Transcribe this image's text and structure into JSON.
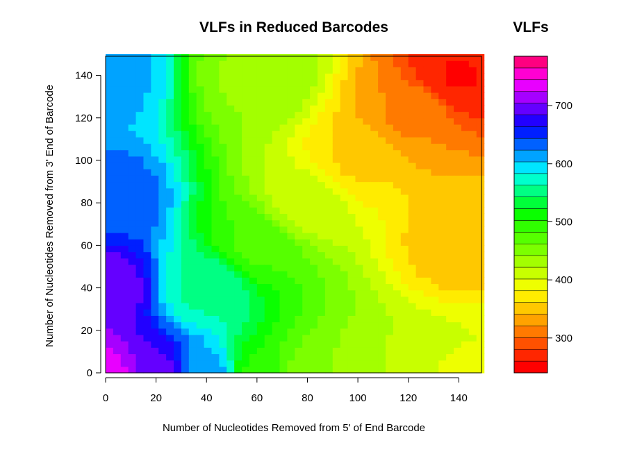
{
  "chart_data": {
    "type": "heatmap",
    "title": "VLFs in Reduced Barcodes",
    "xlabel": "Number of Nucleotides Removed from 5' of End Barcode",
    "ylabel": "Number of Nucleotides Removed from 3' End of Barcode",
    "x_ticks": [
      "0",
      "20",
      "40",
      "60",
      "80",
      "100",
      "120",
      "140"
    ],
    "y_ticks": [
      "0",
      "20",
      "40",
      "60",
      "80",
      "100",
      "120",
      "140"
    ],
    "xlim": [
      0,
      149
    ],
    "ylim": [
      0,
      149
    ],
    "grid": false,
    "colorbar": {
      "title": "VLFs",
      "ticks": [
        "300",
        "400",
        "500",
        "600",
        "700"
      ],
      "range": [
        240,
        785
      ],
      "levels": 27,
      "colors": [
        "#FF0000",
        "#FF2600",
        "#FF5100",
        "#FF7A00",
        "#FFA200",
        "#FFC800",
        "#FFEC00",
        "#EEFF00",
        "#C8FF00",
        "#A3FF00",
        "#7CFF00",
        "#56FF00",
        "#30FF00",
        "#0AFF00",
        "#00FF3A",
        "#00FF83",
        "#00FFCC",
        "#00E5FF",
        "#00A3FF",
        "#0061FF",
        "#001FFF",
        "#2200FF",
        "#6400FF",
        "#A600FF",
        "#E800FF",
        "#FF00D2",
        "#FF0080"
      ]
    },
    "surface_samples": [
      {
        "x": 0,
        "y": 0,
        "vlf": 730
      },
      {
        "x": 0,
        "y": 40,
        "vlf": 700
      },
      {
        "x": 0,
        "y": 80,
        "vlf": 640
      },
      {
        "x": 0,
        "y": 140,
        "vlf": 610
      },
      {
        "x": 20,
        "y": 0,
        "vlf": 690
      },
      {
        "x": 40,
        "y": 0,
        "vlf": 610
      },
      {
        "x": 60,
        "y": 0,
        "vlf": 500
      },
      {
        "x": 80,
        "y": 0,
        "vlf": 455
      },
      {
        "x": 100,
        "y": 0,
        "vlf": 430
      },
      {
        "x": 120,
        "y": 0,
        "vlf": 415
      },
      {
        "x": 140,
        "y": 0,
        "vlf": 400
      },
      {
        "x": 40,
        "y": 40,
        "vlf": 560
      },
      {
        "x": 60,
        "y": 60,
        "vlf": 480
      },
      {
        "x": 80,
        "y": 80,
        "vlf": 410
      },
      {
        "x": 100,
        "y": 100,
        "vlf": 360
      },
      {
        "x": 120,
        "y": 120,
        "vlf": 320
      },
      {
        "x": 140,
        "y": 140,
        "vlf": 260
      },
      {
        "x": 60,
        "y": 140,
        "vlf": 440
      },
      {
        "x": 140,
        "y": 60,
        "vlf": 350
      }
    ]
  }
}
